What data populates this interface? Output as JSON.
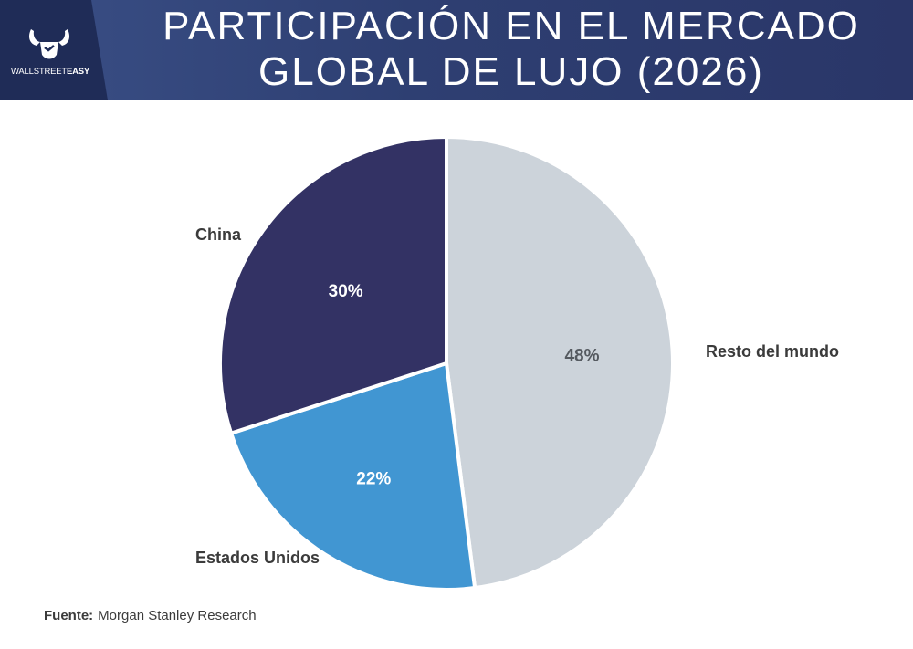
{
  "header": {
    "title_line1": "PARTICIPACIÓN EN EL MERCADO",
    "title_line2": "GLOBAL DE LUJO (2026)",
    "logo": {
      "text_regular": "WALLSTREET",
      "text_bold": "EASY",
      "icon": "bull-horns-icon"
    }
  },
  "chart_data": {
    "type": "pie",
    "title": "PARTICIPACIÓN EN EL MERCADO GLOBAL DE LUJO (2026)",
    "slices": [
      {
        "label": "Resto del mundo",
        "value": 48,
        "value_label": "48%",
        "color": "#ccd3da",
        "label_color": "#555a60"
      },
      {
        "label": "Estados Unidos",
        "value": 22,
        "value_label": "22%",
        "color": "#4196d2",
        "label_color": "#ffffff"
      },
      {
        "label": "China",
        "value": 30,
        "value_label": "30%",
        "color": "#333264",
        "label_color": "#ffffff"
      }
    ],
    "start_angle_deg": 0,
    "direction": "clockwise",
    "unit": "%"
  },
  "footer": {
    "source_label": "Fuente:",
    "source_text": "Morgan Stanley Research"
  }
}
